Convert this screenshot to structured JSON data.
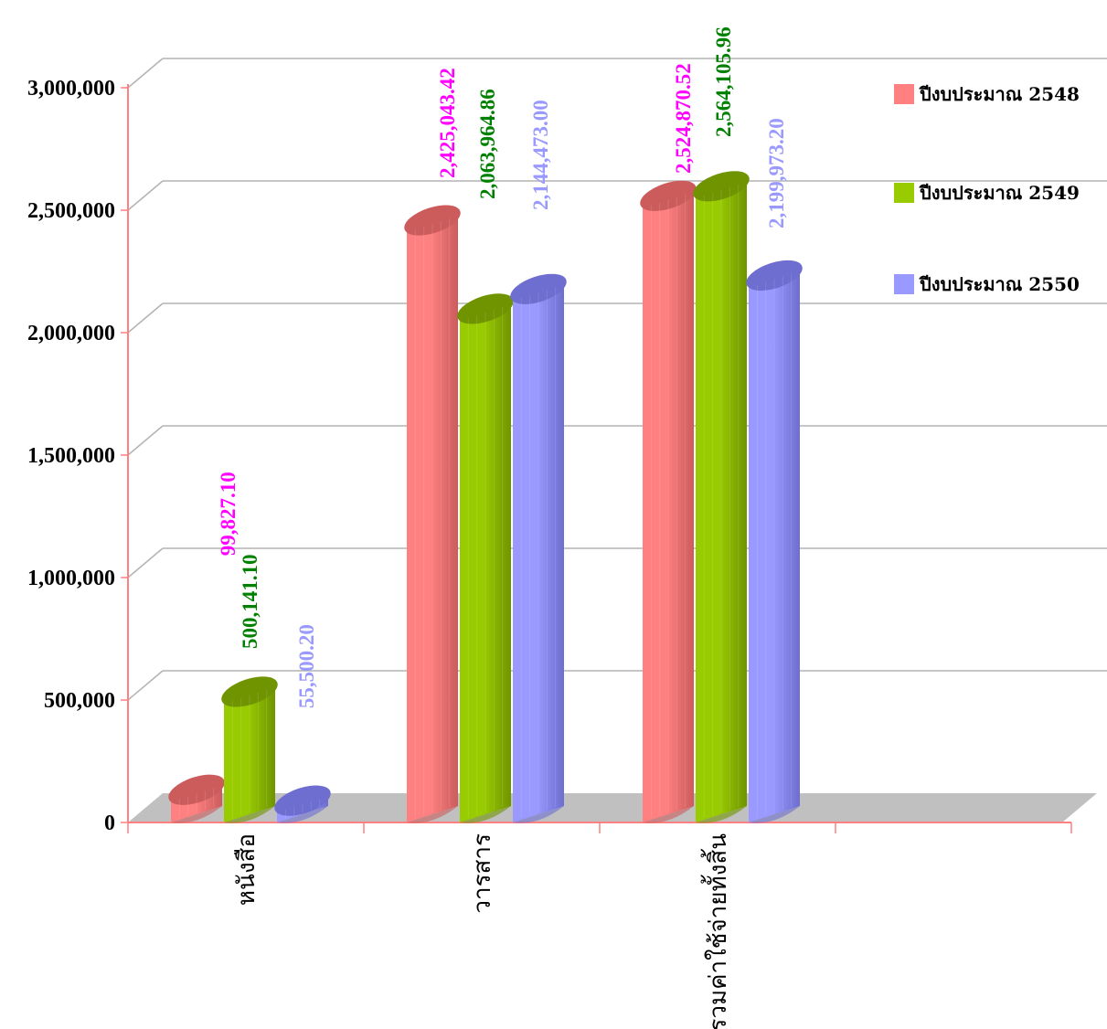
{
  "chart_data": {
    "type": "bar",
    "title": "",
    "xlabel": "",
    "ylabel": "",
    "categories": [
      "หนังสือ",
      "วารสาร",
      "รวมค่าใช้จ่ายทั้งสิ้น"
    ],
    "series": [
      {
        "name": "ปีงบประมาณ 2548",
        "values": [
          99827.1,
          2425043.42,
          2524870.52
        ],
        "value_labels": [
          "99,827.10",
          "2,425,043.42",
          "2,524,870.52"
        ]
      },
      {
        "name": "ปีงบประมาณ 2549",
        "values": [
          500141.1,
          2063964.86,
          2564105.96
        ],
        "value_labels": [
          "500,141.10",
          "2,063,964.86",
          "2,564,105.96"
        ]
      },
      {
        "name": "ปีงบประมาณ 2550",
        "values": [
          55500.2,
          2144473.0,
          2199973.2
        ],
        "value_labels": [
          "55,500.20",
          "2,144,473.00",
          "2,199,973.20"
        ]
      }
    ],
    "ylim": [
      0,
      3000000
    ],
    "yticks": [
      0,
      500000,
      1000000,
      1500000,
      2000000,
      2500000,
      3000000
    ],
    "ytick_labels": [
      "0",
      "500,000",
      "1,000,000",
      "1,500,000",
      "2,000,000",
      "2,500,000",
      "3,000,000"
    ],
    "grid": true,
    "legend_position": "right",
    "colors": {
      "series": [
        "#ff8080",
        "#99cc00",
        "#9999ff"
      ],
      "series_dark": [
        "#cc5c5c",
        "#6f9400",
        "#6e6ed0"
      ],
      "labels": [
        "#ff00ff",
        "#008000",
        "#9999ff"
      ],
      "grid": "#b3b3b3",
      "axis": "#ff8080",
      "floor": "#c0c0c0"
    }
  }
}
